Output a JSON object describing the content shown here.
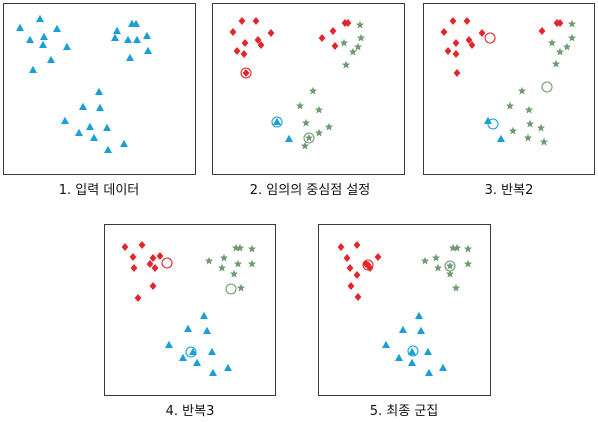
{
  "captions": {
    "panel1": "1. 입력 데이터",
    "panel2": "2. 임의의 중심점 설정",
    "panel3": "3. 반복2",
    "panel4": "4. 반복3",
    "panel5": "5. 최종 군집"
  },
  "colors": {
    "cluster_blue": "#19a0d7",
    "cluster_red": "#e2262b",
    "cluster_green": "#6f9b73",
    "frame": "#3a3a3a"
  },
  "markers": {
    "blue": "triangle",
    "red": "diamond",
    "green": "star",
    "centroid": "circle"
  }
}
